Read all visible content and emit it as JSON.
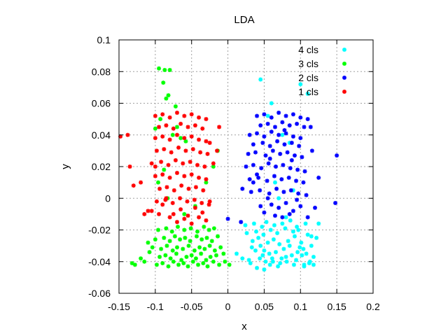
{
  "chart_data": {
    "type": "scatter",
    "title": "LDA",
    "xlabel": "x",
    "ylabel": "y",
    "xlim": [
      -0.15,
      0.2
    ],
    "ylim": [
      -0.06,
      0.1
    ],
    "xticks": [
      "-0.15",
      "-0.1",
      "-0.05",
      "0",
      "0.05",
      "0.1",
      "0.15",
      "0.2"
    ],
    "yticks": [
      "-0.06",
      "-0.04",
      "-0.02",
      "0",
      "0.02",
      "0.04",
      "0.06",
      "0.08",
      "0.1"
    ],
    "grid": true,
    "legend_position": "top-right",
    "series": [
      {
        "name": "4 cls",
        "color": "#00ffff",
        "x": [
          0.031,
          0.052,
          0.058,
          0.048,
          0.061,
          0.072,
          0.081,
          0.094,
          0.105,
          0.112,
          0.038,
          0.045,
          0.066,
          0.077,
          0.088,
          0.099,
          0.108,
          0.118,
          0.034,
          0.042,
          0.055,
          0.063,
          0.071,
          0.083,
          0.092,
          0.101,
          0.115,
          0.026,
          0.039,
          0.049,
          0.059,
          0.068,
          0.079,
          0.09,
          0.097,
          0.11,
          0.122,
          0.024,
          0.036,
          0.047,
          0.053,
          0.064,
          0.075,
          0.086,
          0.095,
          0.107,
          0.029,
          0.044,
          0.057,
          0.069,
          0.08,
          0.091,
          0.102,
          0.113,
          0.033,
          0.05,
          0.062,
          0.074,
          0.085,
          0.096,
          0.104,
          0.02,
          0.012,
          0.118,
          0.125,
          0.045,
          0.1,
          0.11,
          0.06,
          0.055,
          0.075,
          0.085,
          0.065,
          0.07,
          0.09,
          0.08,
          0.115,
          0.05,
          0.04,
          0.105
        ],
        "y": [
          -0.041,
          -0.04,
          -0.042,
          -0.036,
          -0.038,
          -0.041,
          -0.04,
          -0.039,
          -0.042,
          -0.041,
          -0.033,
          -0.03,
          -0.034,
          -0.032,
          -0.036,
          -0.031,
          -0.035,
          -0.037,
          -0.027,
          -0.025,
          -0.028,
          -0.026,
          -0.029,
          -0.027,
          -0.024,
          -0.028,
          -0.03,
          -0.022,
          -0.021,
          -0.023,
          -0.02,
          -0.022,
          -0.019,
          -0.021,
          -0.02,
          -0.023,
          -0.025,
          -0.017,
          -0.016,
          -0.018,
          -0.015,
          -0.017,
          -0.016,
          -0.014,
          -0.018,
          -0.016,
          -0.039,
          -0.038,
          -0.035,
          -0.043,
          -0.037,
          -0.042,
          -0.036,
          -0.04,
          -0.031,
          -0.033,
          -0.04,
          -0.038,
          -0.03,
          -0.034,
          -0.032,
          -0.038,
          -0.035,
          -0.042,
          -0.016,
          0.075,
          0.072,
          0.066,
          0.06,
          0.052,
          0.04,
          0.035,
          0.01,
          0.0,
          0.005,
          -0.012,
          -0.024,
          -0.045,
          -0.044,
          -0.043
        ]
      },
      {
        "name": "3 cls",
        "color": "#00ff00",
        "x": [
          -0.098,
          -0.09,
          -0.082,
          -0.075,
          -0.068,
          -0.061,
          -0.055,
          -0.048,
          -0.041,
          -0.034,
          -0.028,
          -0.02,
          -0.012,
          -0.094,
          -0.086,
          -0.079,
          -0.071,
          -0.064,
          -0.057,
          -0.05,
          -0.044,
          -0.037,
          -0.03,
          -0.024,
          -0.016,
          -0.104,
          -0.092,
          -0.084,
          -0.076,
          -0.07,
          -0.062,
          -0.054,
          -0.046,
          -0.039,
          -0.032,
          -0.025,
          -0.018,
          -0.01,
          -0.1,
          -0.088,
          -0.08,
          -0.073,
          -0.066,
          -0.059,
          -0.052,
          -0.043,
          -0.036,
          -0.029,
          -0.022,
          -0.014,
          -0.096,
          -0.085,
          -0.077,
          -0.069,
          -0.06,
          -0.051,
          -0.042,
          -0.033,
          -0.026,
          -0.019,
          -0.108,
          -0.115,
          -0.128,
          -0.132,
          -0.12,
          -0.11,
          -0.004,
          0.002,
          -0.006,
          -0.095,
          -0.087,
          -0.08,
          -0.089,
          -0.082,
          -0.072,
          -0.085,
          -0.093,
          -0.1,
          -0.07,
          -0.076,
          -0.065,
          -0.058,
          -0.014,
          -0.02,
          -0.03,
          -0.088,
          -0.096,
          -0.083,
          -0.06,
          -0.045
        ],
        "y": [
          -0.042,
          -0.041,
          -0.043,
          -0.04,
          -0.042,
          -0.041,
          -0.043,
          -0.04,
          -0.042,
          -0.041,
          -0.043,
          -0.04,
          -0.042,
          -0.037,
          -0.036,
          -0.038,
          -0.035,
          -0.039,
          -0.037,
          -0.036,
          -0.038,
          -0.035,
          -0.039,
          -0.037,
          -0.036,
          -0.031,
          -0.032,
          -0.03,
          -0.033,
          -0.031,
          -0.032,
          -0.03,
          -0.033,
          -0.031,
          -0.032,
          -0.03,
          -0.033,
          -0.031,
          -0.026,
          -0.025,
          -0.027,
          -0.024,
          -0.026,
          -0.025,
          -0.027,
          -0.024,
          -0.026,
          -0.025,
          -0.027,
          -0.024,
          -0.02,
          -0.019,
          -0.021,
          -0.018,
          -0.02,
          -0.019,
          -0.021,
          -0.018,
          -0.02,
          -0.019,
          -0.034,
          -0.04,
          -0.042,
          -0.041,
          -0.038,
          -0.028,
          -0.04,
          -0.042,
          -0.035,
          0.082,
          0.081,
          0.081,
          0.073,
          0.065,
          0.058,
          0.063,
          0.05,
          0.044,
          0.045,
          0.04,
          0.038,
          0.036,
          0.03,
          0.02,
          0.01,
          0.018,
          0.01,
          0.0,
          -0.01,
          -0.005
        ]
      },
      {
        "name": "2 cls",
        "color": "#0000ff",
        "x": [
          0.04,
          0.05,
          0.06,
          0.07,
          0.08,
          0.09,
          0.1,
          0.11,
          0.045,
          0.055,
          0.065,
          0.075,
          0.085,
          0.095,
          0.105,
          0.03,
          0.04,
          0.05,
          0.06,
          0.07,
          0.08,
          0.09,
          0.1,
          0.035,
          0.048,
          0.058,
          0.068,
          0.078,
          0.088,
          0.098,
          0.028,
          0.038,
          0.052,
          0.062,
          0.072,
          0.082,
          0.092,
          0.102,
          0.025,
          0.035,
          0.046,
          0.056,
          0.066,
          0.076,
          0.086,
          0.096,
          0.106,
          0.03,
          0.042,
          0.054,
          0.064,
          0.074,
          0.084,
          0.094,
          0.104,
          0.032,
          0.044,
          0.057,
          0.067,
          0.077,
          0.087,
          0.097,
          0.108,
          0.02,
          0.018,
          0.0,
          0.15,
          0.125,
          0.116,
          0.12,
          0.148,
          0.114,
          0.06,
          0.07,
          0.08,
          0.09,
          0.1,
          0.05,
          0.065,
          0.075,
          0.085,
          0.055,
          0.095,
          0.045,
          0.11,
          0.04,
          0.035,
          0.058,
          0.078,
          0.088
        ],
        "y": [
          0.052,
          0.053,
          0.051,
          0.054,
          0.052,
          0.053,
          0.051,
          0.05,
          0.046,
          0.047,
          0.045,
          0.048,
          0.046,
          0.047,
          0.045,
          0.04,
          0.041,
          0.039,
          0.042,
          0.04,
          0.041,
          0.039,
          0.038,
          0.034,
          0.035,
          0.033,
          0.036,
          0.034,
          0.035,
          0.033,
          0.028,
          0.029,
          0.027,
          0.03,
          0.028,
          0.029,
          0.027,
          0.026,
          0.02,
          0.021,
          0.019,
          0.022,
          0.02,
          0.021,
          0.019,
          0.018,
          0.017,
          0.012,
          0.013,
          0.011,
          0.014,
          0.012,
          0.013,
          0.011,
          0.01,
          0.004,
          0.005,
          0.003,
          0.006,
          0.004,
          0.005,
          0.003,
          0.002,
          0.006,
          -0.015,
          -0.013,
          0.027,
          0.013,
          0.03,
          -0.006,
          -0.003,
          0.045,
          -0.004,
          -0.006,
          -0.003,
          -0.008,
          -0.005,
          -0.009,
          -0.011,
          -0.012,
          -0.01,
          0.0,
          -0.001,
          -0.005,
          -0.012,
          0.015,
          0.01,
          0.025,
          0.043,
          0.024
        ]
      },
      {
        "name": "1 cls",
        "color": "#ff0000",
        "x": [
          -0.1,
          -0.09,
          -0.08,
          -0.07,
          -0.06,
          -0.05,
          -0.04,
          -0.03,
          -0.095,
          -0.085,
          -0.075,
          -0.065,
          -0.055,
          -0.045,
          -0.035,
          -0.1,
          -0.09,
          -0.08,
          -0.07,
          -0.06,
          -0.05,
          -0.04,
          -0.03,
          -0.025,
          -0.098,
          -0.088,
          -0.078,
          -0.068,
          -0.058,
          -0.048,
          -0.038,
          -0.028,
          -0.105,
          -0.092,
          -0.082,
          -0.072,
          -0.062,
          -0.052,
          -0.042,
          -0.032,
          -0.1,
          -0.09,
          -0.08,
          -0.07,
          -0.06,
          -0.05,
          -0.04,
          -0.03,
          -0.094,
          -0.084,
          -0.074,
          -0.064,
          -0.054,
          -0.044,
          -0.034,
          -0.098,
          -0.086,
          -0.076,
          -0.066,
          -0.056,
          -0.046,
          -0.036,
          -0.026,
          -0.148,
          -0.138,
          -0.135,
          -0.13,
          -0.12,
          -0.115,
          -0.11,
          -0.012,
          -0.015,
          -0.02,
          -0.105,
          -0.095,
          -0.08,
          -0.07,
          -0.06,
          -0.05,
          -0.04,
          -0.03,
          -0.09,
          -0.065,
          -0.045,
          -0.075,
          -0.055,
          -0.035,
          -0.085,
          -0.025,
          -0.1
        ],
        "y": [
          0.052,
          0.053,
          0.051,
          0.054,
          0.052,
          0.053,
          0.051,
          0.05,
          0.045,
          0.046,
          0.044,
          0.047,
          0.045,
          0.046,
          0.044,
          0.038,
          0.039,
          0.037,
          0.04,
          0.038,
          0.039,
          0.037,
          0.036,
          0.035,
          0.03,
          0.031,
          0.029,
          0.032,
          0.03,
          0.031,
          0.029,
          0.028,
          0.022,
          0.023,
          0.021,
          0.024,
          0.022,
          0.023,
          0.021,
          0.02,
          0.014,
          0.015,
          0.013,
          0.016,
          0.014,
          0.015,
          0.013,
          0.012,
          0.006,
          0.007,
          0.005,
          0.008,
          0.006,
          0.007,
          0.005,
          -0.002,
          -0.001,
          -0.003,
          0.0,
          -0.002,
          -0.001,
          -0.003,
          -0.004,
          0.039,
          0.04,
          0.02,
          0.008,
          0.01,
          -0.01,
          -0.008,
          0.045,
          0.03,
          0.022,
          -0.008,
          -0.01,
          -0.012,
          -0.015,
          -0.013,
          -0.016,
          -0.012,
          -0.014,
          -0.004,
          -0.007,
          -0.006,
          -0.01,
          -0.011,
          -0.009,
          0.0,
          -0.002,
          0.02
        ]
      }
    ]
  }
}
